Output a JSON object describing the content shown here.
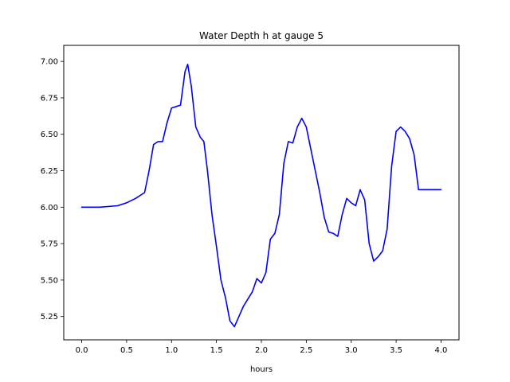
{
  "chart_data": {
    "type": "line",
    "title": "Water Depth h at gauge 5",
    "xlabel": "hours",
    "ylabel": "",
    "xlim": [
      -0.2,
      4.2
    ],
    "ylim": [
      5.09,
      7.11
    ],
    "xticks": [
      0.0,
      0.5,
      1.0,
      1.5,
      2.0,
      2.5,
      3.0,
      3.5,
      4.0
    ],
    "xtick_labels": [
      "0.0",
      "0.5",
      "1.0",
      "1.5",
      "2.0",
      "2.5",
      "3.0",
      "3.5",
      "4.0"
    ],
    "yticks": [
      5.25,
      5.5,
      5.75,
      6.0,
      6.25,
      6.5,
      6.75,
      7.0
    ],
    "ytick_labels": [
      "5.25",
      "5.50",
      "5.75",
      "6.00",
      "6.25",
      "6.50",
      "6.75",
      "7.00"
    ],
    "grid": false,
    "series": [
      {
        "name": "",
        "color": "#0000ff",
        "x": [
          0.0,
          0.2,
          0.4,
          0.5,
          0.6,
          0.7,
          0.75,
          0.8,
          0.85,
          0.9,
          0.95,
          1.0,
          1.05,
          1.1,
          1.15,
          1.18,
          1.22,
          1.27,
          1.32,
          1.36,
          1.4,
          1.45,
          1.5,
          1.55,
          1.6,
          1.65,
          1.7,
          1.75,
          1.8,
          1.85,
          1.9,
          1.95,
          2.0,
          2.05,
          2.1,
          2.15,
          2.2,
          2.25,
          2.3,
          2.35,
          2.4,
          2.45,
          2.5,
          2.55,
          2.6,
          2.65,
          2.7,
          2.75,
          2.8,
          2.85,
          2.9,
          2.95,
          3.0,
          3.05,
          3.1,
          3.15,
          3.2,
          3.25,
          3.3,
          3.35,
          3.4,
          3.45,
          3.5,
          3.55,
          3.6,
          3.65,
          3.7,
          3.75,
          3.8,
          3.85,
          3.9,
          3.95,
          4.0
        ],
        "y": [
          6.0,
          6.0,
          6.01,
          6.03,
          6.06,
          6.1,
          6.25,
          6.43,
          6.45,
          6.45,
          6.58,
          6.68,
          6.69,
          6.7,
          6.93,
          6.98,
          6.83,
          6.55,
          6.48,
          6.45,
          6.25,
          5.95,
          5.73,
          5.5,
          5.38,
          5.22,
          5.18,
          5.25,
          5.32,
          5.37,
          5.42,
          5.51,
          5.48,
          5.55,
          5.78,
          5.82,
          5.95,
          6.3,
          6.45,
          6.44,
          6.55,
          6.61,
          6.55,
          6.4,
          6.25,
          6.1,
          5.93,
          5.83,
          5.82,
          5.8,
          5.95,
          6.06,
          6.03,
          6.01,
          6.12,
          6.05,
          5.75,
          5.63,
          5.66,
          5.7,
          5.85,
          6.28,
          6.52,
          6.55,
          6.52,
          6.47,
          6.36,
          6.12,
          6.12,
          6.12,
          6.12,
          6.12,
          6.12
        ]
      }
    ]
  }
}
